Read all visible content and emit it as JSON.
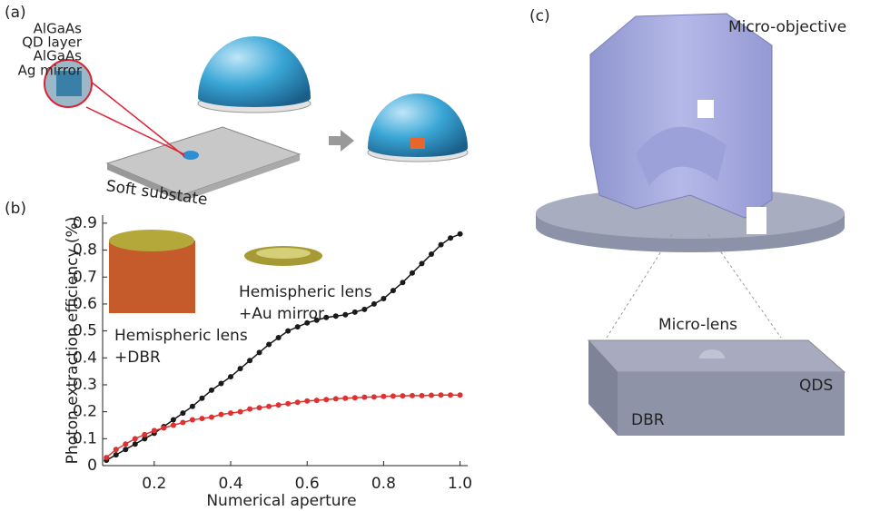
{
  "panel_a": {
    "label": "(a)",
    "layers": [
      "AlGaAs",
      "QD layer",
      "AlGaAs",
      "Ag mirror"
    ],
    "substrate": "Soft substate"
  },
  "chart_data": {
    "type": "line",
    "panel_label": "(b)",
    "xlabel": "Numerical aperture",
    "ylabel": "Photon extraction efficiency (%)",
    "annotations": [
      "Hemispheric lens",
      "+DBR",
      "Hemispheric lens",
      "+Au mirror"
    ],
    "x": [
      0.075,
      0.1,
      0.125,
      0.15,
      0.175,
      0.2,
      0.225,
      0.25,
      0.275,
      0.3,
      0.325,
      0.35,
      0.375,
      0.4,
      0.425,
      0.45,
      0.475,
      0.5,
      0.525,
      0.55,
      0.575,
      0.6,
      0.625,
      0.65,
      0.675,
      0.7,
      0.725,
      0.75,
      0.775,
      0.8,
      0.825,
      0.85,
      0.875,
      0.9,
      0.925,
      0.95,
      0.975,
      1.0
    ],
    "series": [
      {
        "color": "#1a1a1a",
        "values": [
          0.02,
          0.04,
          0.06,
          0.08,
          0.1,
          0.12,
          0.145,
          0.17,
          0.195,
          0.22,
          0.25,
          0.28,
          0.305,
          0.33,
          0.36,
          0.39,
          0.42,
          0.45,
          0.475,
          0.5,
          0.515,
          0.53,
          0.54,
          0.55,
          0.555,
          0.56,
          0.57,
          0.58,
          0.6,
          0.62,
          0.65,
          0.68,
          0.715,
          0.75,
          0.785,
          0.82,
          0.845,
          0.86
        ]
      },
      {
        "color": "#e03030",
        "values": [
          0.03,
          0.06,
          0.08,
          0.1,
          0.115,
          0.13,
          0.14,
          0.15,
          0.16,
          0.17,
          0.175,
          0.18,
          0.19,
          0.195,
          0.2,
          0.21,
          0.215,
          0.22,
          0.225,
          0.23,
          0.235,
          0.24,
          0.242,
          0.245,
          0.248,
          0.25,
          0.252,
          0.254,
          0.255,
          0.257,
          0.258,
          0.259,
          0.26,
          0.26,
          0.261,
          0.262,
          0.262,
          0.262
        ]
      }
    ],
    "xlim": [
      0.065,
      1.02
    ],
    "ylim": [
      0,
      0.93
    ],
    "xticks": [
      0.2,
      0.4,
      0.6,
      0.8,
      {
        "value": 1,
        "label": "1.0"
      }
    ],
    "yticks": [
      0,
      0.1,
      0.2,
      0.3,
      0.4,
      0.5,
      0.6,
      0.7,
      0.8,
      0.9
    ]
  },
  "panel_c": {
    "label": "(c)",
    "objective": "Micro-objective",
    "lens": "Micro-lens",
    "qds": "QDS",
    "dbr": "DBR"
  }
}
